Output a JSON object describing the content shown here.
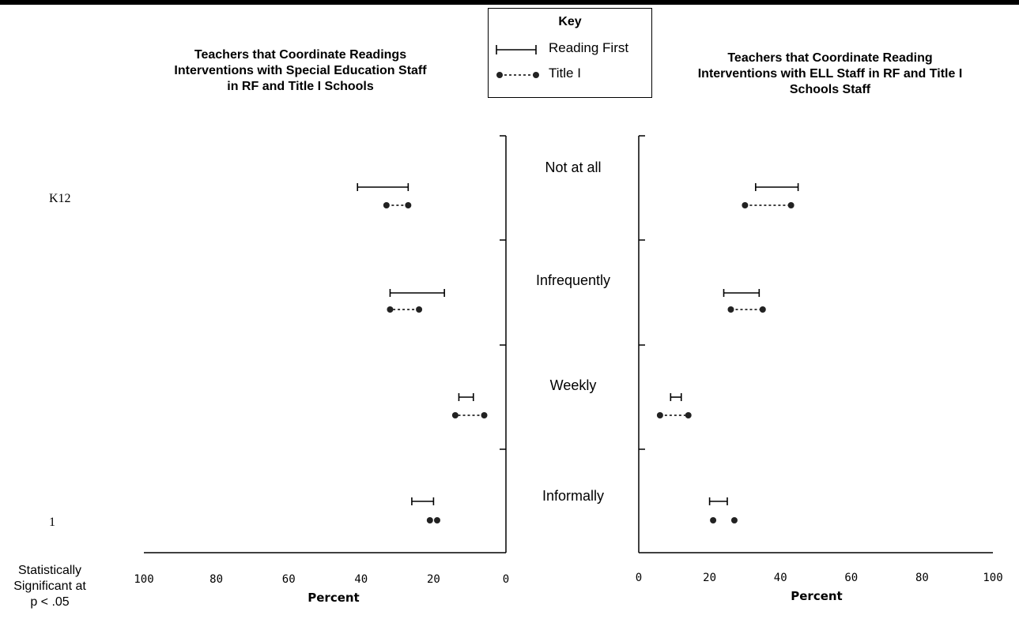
{
  "key": {
    "title": "Key",
    "reading_first_label": "Reading First",
    "title_one_label": "Title I"
  },
  "row_labels": [
    "K12",
    "1"
  ],
  "significance_note": "Statistically\nSignificant at\np < .05",
  "categories": [
    "Not at all",
    "Infrequently",
    "Weekly",
    "Informally"
  ],
  "chart_data": [
    {
      "type": "range-dot",
      "title": "Teachers that Coordinate Readings\nInterventions with Special Education Staff\nin RF and Title I Schools",
      "xlabel": "Percent",
      "x_ticks": [
        100,
        80,
        60,
        40,
        20,
        0
      ],
      "xlim": [
        100,
        0
      ],
      "x_reversed": true,
      "categories": [
        "Not at all",
        "Infrequently",
        "Weekly",
        "Informally"
      ],
      "series": [
        {
          "name": "Reading First",
          "ranges": [
            [
              27,
              41
            ],
            [
              17,
              32
            ],
            [
              9,
              13
            ],
            [
              20,
              26
            ]
          ]
        },
        {
          "name": "Title I",
          "ranges": [
            [
              27,
              33
            ],
            [
              24,
              32
            ],
            [
              6,
              14
            ],
            [
              19,
              21
            ]
          ]
        }
      ]
    },
    {
      "type": "range-dot",
      "title": "Teachers that Coordinate Reading\nInterventions with ELL Staff in RF and Title I\nSchools Staff",
      "xlabel": "Percent",
      "x_ticks": [
        0,
        20,
        40,
        60,
        80,
        100
      ],
      "xlim": [
        0,
        100
      ],
      "x_reversed": false,
      "categories": [
        "Not at all",
        "Infrequently",
        "Weekly",
        "Informally"
      ],
      "series": [
        {
          "name": "Reading First",
          "ranges": [
            [
              33,
              45
            ],
            [
              24,
              34
            ],
            [
              9,
              12
            ],
            [
              20,
              25
            ]
          ]
        },
        {
          "name": "Title I",
          "ranges": [
            [
              30,
              43
            ],
            [
              26,
              35
            ],
            [
              6,
              14
            ],
            [
              21,
              27
            ]
          ]
        }
      ]
    }
  ]
}
